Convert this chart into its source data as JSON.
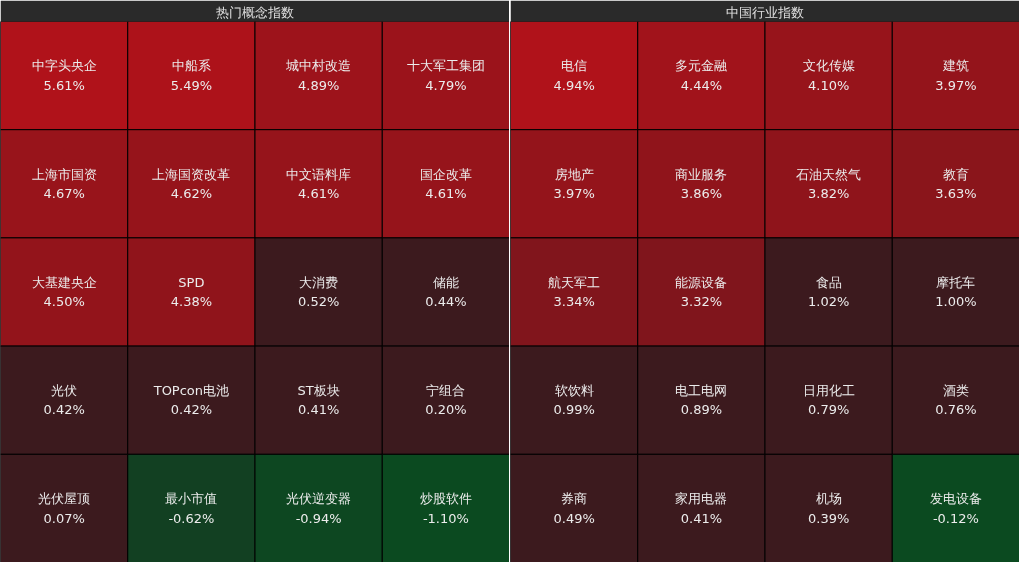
{
  "chart_data": [
    {
      "type": "other",
      "title": "热门概念指数",
      "categories": [
        "中字头央企",
        "中船系",
        "城中村改造",
        "十大军工集团",
        "上海市国资",
        "上海国资改革",
        "中文语料库",
        "国企改革",
        "大基建央企",
        "SPD",
        "大消费",
        "储能",
        "光伏",
        "TOPcon电池",
        "ST板块",
        "宁组合",
        "光伏屋顶",
        "最小市值",
        "光伏逆变器",
        "炒股软件"
      ],
      "values": [
        5.61,
        5.49,
        4.89,
        4.79,
        4.67,
        4.62,
        4.61,
        4.61,
        4.5,
        4.38,
        0.52,
        0.44,
        0.42,
        0.42,
        0.41,
        0.2,
        0.07,
        -0.62,
        -0.94,
        -1.1
      ],
      "value_labels": [
        "5.61%",
        "5.49%",
        "4.89%",
        "4.79%",
        "4.67%",
        "4.62%",
        "4.61%",
        "4.61%",
        "4.50%",
        "4.38%",
        "0.52%",
        "0.44%",
        "0.42%",
        "0.42%",
        "0.41%",
        "0.20%",
        "0.07%",
        "-0.62%",
        "-0.94%",
        "-1.10%"
      ]
    },
    {
      "type": "other",
      "title": "中国行业指数",
      "categories": [
        "电信",
        "多元金融",
        "文化传媒",
        "建筑",
        "房地产",
        "商业服务",
        "石油天然气",
        "教育",
        "航天军工",
        "能源设备",
        "食品",
        "摩托车",
        "软饮料",
        "电工电网",
        "日用化工",
        "酒类",
        "券商",
        "家用电器",
        "机场",
        "发电设备"
      ],
      "values": [
        4.94,
        4.44,
        4.1,
        3.97,
        3.97,
        3.86,
        3.82,
        3.63,
        3.34,
        3.32,
        1.02,
        1.0,
        0.99,
        0.89,
        0.79,
        0.76,
        0.49,
        0.41,
        0.39,
        -0.12
      ],
      "value_labels": [
        "4.94%",
        "4.44%",
        "4.10%",
        "3.97%",
        "3.97%",
        "3.86%",
        "3.82%",
        "3.63%",
        "3.34%",
        "3.32%",
        "1.02%",
        "1.00%",
        "0.99%",
        "0.89%",
        "0.79%",
        "0.76%",
        "0.49%",
        "0.41%",
        "0.39%",
        "-0.12%"
      ]
    }
  ]
}
